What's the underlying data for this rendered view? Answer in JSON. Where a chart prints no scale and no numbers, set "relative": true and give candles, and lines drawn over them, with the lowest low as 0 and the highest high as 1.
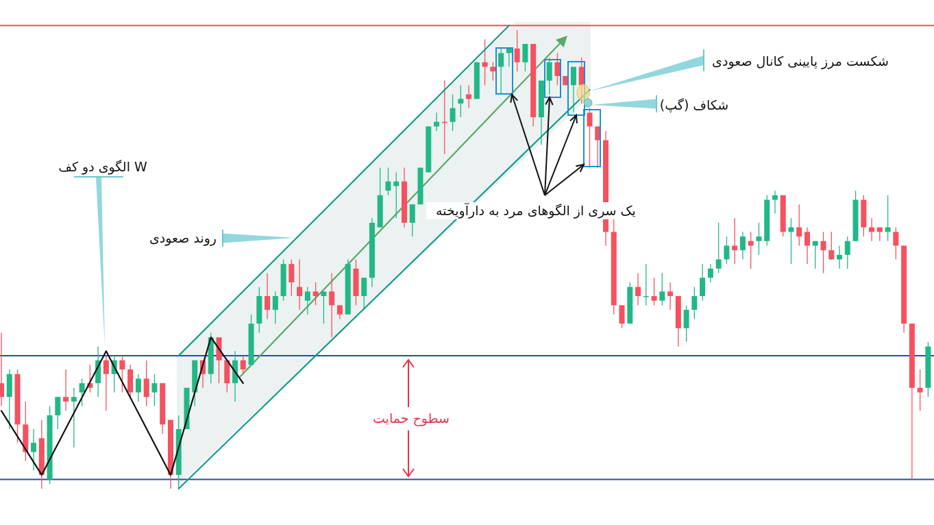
{
  "chart_data": {
    "type": "candlestick",
    "relative": true,
    "categories": [
      null,
      null,
      null,
      null,
      null,
      null,
      null,
      null,
      null,
      null,
      null,
      null,
      null,
      null,
      null,
      null,
      null,
      null,
      null,
      null,
      null,
      null,
      null,
      null,
      null,
      null,
      null,
      null,
      null,
      null,
      null,
      null,
      null,
      null,
      null,
      null,
      null,
      null,
      null,
      null,
      null,
      null,
      null,
      null,
      null,
      null,
      null,
      null,
      null,
      null,
      null,
      null,
      null,
      null,
      null,
      null,
      null,
      null,
      null,
      null,
      null,
      null,
      null,
      null,
      null,
      null,
      null,
      null,
      null,
      null,
      null,
      null,
      null,
      null,
      null,
      null,
      null,
      null,
      null,
      null,
      null,
      null,
      null,
      null,
      null,
      null,
      null,
      null,
      null,
      null,
      null,
      null,
      null,
      null,
      null,
      null,
      null,
      null,
      null,
      null,
      null,
      null,
      null,
      null,
      null,
      null,
      null,
      null,
      null,
      null,
      null,
      null,
      null,
      null,
      null,
      null
    ],
    "ohlc": [
      [
        0.23,
        0.34,
        0.18,
        0.2
      ],
      [
        0.2,
        0.26,
        0.13,
        0.25
      ],
      [
        0.25,
        0.26,
        0.1,
        0.14
      ],
      [
        0.14,
        0.19,
        0.06,
        0.08
      ],
      [
        0.08,
        0.13,
        0.04,
        0.1
      ],
      [
        0.11,
        0.15,
        0.0,
        0.03
      ],
      [
        0.02,
        0.18,
        0.01,
        0.16
      ],
      [
        0.16,
        0.2,
        0.13,
        0.2
      ],
      [
        0.2,
        0.26,
        0.17,
        0.19
      ],
      [
        0.19,
        0.22,
        0.09,
        0.2
      ],
      [
        0.21,
        0.24,
        0.18,
        0.23
      ],
      [
        0.23,
        0.27,
        0.21,
        0.22
      ],
      [
        0.23,
        0.31,
        0.2,
        0.28
      ],
      [
        0.28,
        0.29,
        0.17,
        0.25
      ],
      [
        0.25,
        0.29,
        0.21,
        0.28
      ],
      [
        0.28,
        0.29,
        0.21,
        0.26
      ],
      [
        0.26,
        0.27,
        0.2,
        0.21
      ],
      [
        0.21,
        0.25,
        0.19,
        0.24
      ],
      [
        0.24,
        0.28,
        0.18,
        0.2
      ],
      [
        0.21,
        0.25,
        0.18,
        0.23
      ],
      [
        0.23,
        0.23,
        0.12,
        0.14
      ],
      [
        0.15,
        0.15,
        0.0,
        0.03
      ],
      [
        0.03,
        0.16,
        0.0,
        0.13
      ],
      [
        0.13,
        0.22,
        0.13,
        0.22
      ],
      [
        0.21,
        0.28,
        0.18,
        0.28
      ],
      [
        0.28,
        0.28,
        0.22,
        0.25
      ],
      [
        0.25,
        0.34,
        0.23,
        0.33
      ],
      [
        0.33,
        0.33,
        0.23,
        0.28
      ],
      [
        0.28,
        0.28,
        0.21,
        0.23
      ],
      [
        0.23,
        0.3,
        0.19,
        0.28
      ],
      [
        0.28,
        0.29,
        0.25,
        0.26
      ],
      [
        0.27,
        0.38,
        0.27,
        0.36
      ],
      [
        0.36,
        0.44,
        0.34,
        0.42
      ],
      [
        0.42,
        0.47,
        0.37,
        0.39
      ],
      [
        0.39,
        0.43,
        0.36,
        0.42
      ],
      [
        0.42,
        0.5,
        0.41,
        0.49
      ],
      [
        0.49,
        0.5,
        0.42,
        0.45
      ],
      [
        0.44,
        0.5,
        0.39,
        0.42
      ],
      [
        0.41,
        0.44,
        0.38,
        0.43
      ],
      [
        0.43,
        0.45,
        0.4,
        0.42
      ],
      [
        0.42,
        0.43,
        0.36,
        0.43
      ],
      [
        0.43,
        0.47,
        0.33,
        0.4
      ],
      [
        0.4,
        0.4,
        0.37,
        0.38
      ],
      [
        0.38,
        0.5,
        0.38,
        0.49
      ],
      [
        0.48,
        0.5,
        0.4,
        0.42
      ],
      [
        0.42,
        0.46,
        0.39,
        0.46
      ],
      [
        0.46,
        0.59,
        0.44,
        0.58
      ],
      [
        0.57,
        0.7,
        0.57,
        0.64
      ],
      [
        0.65,
        0.7,
        0.64,
        0.67
      ],
      [
        0.66,
        0.69,
        0.59,
        0.67
      ],
      [
        0.67,
        0.7,
        0.57,
        0.58
      ],
      [
        0.58,
        0.62,
        0.55,
        0.62
      ],
      [
        0.62,
        0.7,
        0.62,
        0.7
      ],
      [
        0.69,
        0.79,
        0.69,
        0.79
      ],
      [
        0.79,
        0.82,
        0.78,
        0.8
      ],
      [
        0.8,
        0.89,
        0.73,
        0.8
      ],
      [
        0.8,
        0.86,
        0.78,
        0.83
      ],
      [
        0.84,
        0.88,
        0.81,
        0.85
      ],
      [
        0.86,
        0.88,
        0.83,
        0.85
      ],
      [
        0.85,
        0.93,
        0.85,
        0.93
      ],
      [
        0.93,
        0.98,
        0.88,
        0.92
      ],
      [
        0.92,
        0.93,
        0.89,
        0.91
      ],
      [
        0.92,
        0.96,
        0.86,
        0.95
      ],
      [
        0.95,
        0.96,
        0.92,
        0.96
      ],
      [
        0.96,
        1.0,
        0.91,
        0.93
      ],
      [
        0.93,
        0.97,
        0.91,
        0.97
      ],
      [
        0.97,
        0.97,
        0.79,
        0.81
      ],
      [
        0.81,
        0.89,
        0.75,
        0.89
      ],
      [
        0.89,
        0.94,
        0.86,
        0.93
      ],
      [
        0.93,
        0.95,
        0.88,
        0.9
      ],
      [
        0.9,
        0.9,
        0.88,
        0.88
      ],
      [
        0.88,
        0.92,
        0.82,
        0.92
      ],
      [
        0.92,
        0.94,
        0.84,
        0.88
      ],
      [
        0.82,
        0.83,
        0.7,
        0.79
      ],
      [
        0.79,
        0.79,
        0.7,
        0.76
      ],
      [
        0.76,
        0.78,
        0.53,
        0.56
      ],
      [
        0.56,
        0.59,
        0.38,
        0.4
      ],
      [
        0.4,
        0.4,
        0.35,
        0.36
      ],
      [
        0.36,
        0.45,
        0.36,
        0.44
      ],
      [
        0.44,
        0.47,
        0.4,
        0.42
      ],
      [
        0.42,
        0.49,
        0.4,
        0.42
      ],
      [
        0.42,
        0.46,
        0.4,
        0.41
      ],
      [
        0.41,
        0.47,
        0.4,
        0.43
      ],
      [
        0.43,
        0.45,
        0.39,
        0.42
      ],
      [
        0.42,
        0.42,
        0.31,
        0.35
      ],
      [
        0.35,
        0.4,
        0.32,
        0.39
      ],
      [
        0.39,
        0.44,
        0.37,
        0.42
      ],
      [
        0.42,
        0.49,
        0.41,
        0.46
      ],
      [
        0.46,
        0.49,
        0.45,
        0.48
      ],
      [
        0.48,
        0.58,
        0.47,
        0.5
      ],
      [
        0.5,
        0.55,
        0.49,
        0.53
      ],
      [
        0.53,
        0.59,
        0.49,
        0.52
      ],
      [
        0.52,
        0.56,
        0.5,
        0.55
      ],
      [
        0.54,
        0.56,
        0.48,
        0.53
      ],
      [
        0.54,
        0.58,
        0.51,
        0.55
      ],
      [
        0.54,
        0.64,
        0.53,
        0.63
      ],
      [
        0.63,
        0.65,
        0.6,
        0.64
      ],
      [
        0.64,
        0.64,
        0.55,
        0.56
      ],
      [
        0.56,
        0.59,
        0.49,
        0.57
      ],
      [
        0.57,
        0.62,
        0.53,
        0.55
      ],
      [
        0.56,
        0.57,
        0.49,
        0.53
      ],
      [
        0.53,
        0.54,
        0.48,
        0.54
      ],
      [
        0.54,
        0.56,
        0.47,
        0.52
      ],
      [
        0.52,
        0.56,
        0.5,
        0.5
      ],
      [
        0.5,
        0.53,
        0.48,
        0.51
      ],
      [
        0.51,
        0.55,
        0.48,
        0.54
      ],
      [
        0.54,
        0.65,
        0.54,
        0.63
      ],
      [
        0.63,
        0.64,
        0.55,
        0.57
      ],
      [
        0.57,
        0.59,
        0.54,
        0.56
      ],
      [
        0.57,
        0.57,
        0.54,
        0.56
      ],
      [
        0.56,
        0.64,
        0.54,
        0.57
      ],
      [
        0.56,
        0.57,
        0.5,
        0.53
      ],
      [
        0.53,
        0.53,
        0.34,
        0.36
      ],
      [
        0.36,
        0.36,
        0.02,
        0.22
      ],
      [
        0.22,
        0.26,
        0.17,
        0.21
      ],
      [
        0.22,
        0.32,
        0.2,
        0.31
      ]
    ],
    "colors": [
      "#f5515f",
      "#22b886",
      "#f5515f",
      "#f5515f",
      "#22b886",
      "#f5515f",
      "#22b886",
      "#22b886",
      "#f5515f",
      "#22b886",
      "#22b886",
      "#f5515f",
      "#22b886",
      "#f5515f",
      "#22b886",
      "#f5515f",
      "#f5515f",
      "#22b886",
      "#f5515f",
      "#22b886",
      "#f5515f",
      "#f5515f",
      "#22b886",
      "#22b886",
      "#22b886",
      "#f5515f",
      "#22b886",
      "#f5515f",
      "#f5515f",
      "#22b886",
      "#f5515f",
      "#22b886",
      "#22b886",
      "#f5515f",
      "#22b886",
      "#22b886",
      "#f5515f",
      "#f5515f",
      "#22b886",
      "#f5515f",
      "#22b886",
      "#f5515f",
      "#f5515f",
      "#22b886",
      "#f5515f",
      "#22b886",
      "#22b886",
      "#22b886",
      "#22b886",
      "#22b886",
      "#f5515f",
      "#22b886",
      "#22b886",
      "#22b886",
      "#22b886",
      "#f5515f",
      "#22b886",
      "#22b886",
      "#f5515f",
      "#22b886",
      "#f5515f",
      "#f5515f",
      "#22b886",
      "#22b886",
      "#f5515f",
      "#22b886",
      "#f5515f",
      "#22b886",
      "#22b886",
      "#f5515f",
      "#f5515f",
      "#22b886",
      "#f5515f",
      "#f5515f",
      "#f5515f",
      "#f5515f",
      "#f5515f",
      "#f5515f",
      "#22b886",
      "#f5515f",
      "#22b886",
      "#f5515f",
      "#22b886",
      "#f5515f",
      "#f5515f",
      "#22b886",
      "#22b886",
      "#22b886",
      "#22b886",
      "#22b886",
      "#22b886",
      "#f5515f",
      "#22b886",
      "#f5515f",
      "#22b886",
      "#22b886",
      "#22b886",
      "#f5515f",
      "#22b886",
      "#f5515f",
      "#f5515f",
      "#22b886",
      "#f5515f",
      "#f5515f",
      "#22b886",
      "#22b886",
      "#22b886",
      "#f5515f",
      "#f5515f",
      "#f5515f",
      "#22b886",
      "#f5515f",
      "#f5515f",
      "#f5515f",
      "#f5515f",
      "#22b886"
    ],
    "series": [
      {
        "type": "line",
        "color": "#111111",
        "values": [
          0.17,
          null,
          null,
          null,
          null,
          0.03,
          null,
          null,
          null,
          null,
          null,
          null,
          null,
          0.3,
          null,
          null,
          null,
          null,
          null,
          null,
          null,
          0.03,
          null,
          null,
          null,
          null,
          0.33,
          null,
          null,
          null,
          0.23,
          null,
          null,
          null,
          null,
          null,
          null,
          null,
          null,
          null,
          null,
          null,
          null,
          null,
          null,
          null,
          null,
          null,
          null,
          null,
          null,
          null,
          null,
          null,
          null,
          null,
          null,
          null,
          null,
          null,
          null,
          null,
          null,
          null,
          null,
          null,
          null,
          null,
          null,
          null,
          null,
          null,
          null,
          null,
          null,
          null,
          null,
          null,
          null,
          null,
          null,
          null,
          null,
          null,
          null,
          null,
          null,
          null,
          null,
          null,
          null,
          null,
          null,
          null,
          null,
          null,
          null,
          null,
          null,
          null,
          null,
          null,
          null,
          null,
          null,
          null,
          null,
          null,
          null,
          null,
          null,
          null,
          null,
          null,
          null,
          null
        ]
      },
      {
        "type": "line",
        "color": "#129c8c",
        "values": [
          null,
          null,
          null,
          null,
          null,
          null,
          null,
          null,
          null,
          null,
          null,
          null,
          null,
          null,
          null,
          null,
          null,
          null,
          null,
          null,
          null,
          null,
          0.29,
          null,
          null,
          null,
          null,
          null,
          null,
          null,
          null,
          null,
          null,
          null,
          null,
          null,
          null,
          null,
          null,
          null,
          null,
          null,
          null,
          null,
          null,
          null,
          null,
          null,
          null,
          null,
          null,
          null,
          null,
          null,
          null,
          null,
          null,
          null,
          null,
          null,
          null,
          null,
          null,
          1.01,
          null,
          null,
          null,
          null,
          null,
          null,
          null,
          null,
          null,
          null,
          null,
          null,
          null,
          null,
          null,
          null,
          null,
          null,
          null,
          null,
          null,
          null,
          null,
          null,
          null,
          null,
          null,
          null,
          null,
          null,
          null,
          null,
          null,
          null,
          null,
          null,
          null,
          null,
          null,
          null,
          null,
          null,
          null,
          null,
          null,
          null,
          null,
          null,
          null,
          null,
          null,
          null
        ]
      },
      {
        "type": "line",
        "color": "#129c8c",
        "values": [
          null,
          null,
          null,
          null,
          null,
          null,
          null,
          null,
          null,
          null,
          null,
          null,
          null,
          null,
          null,
          null,
          null,
          null,
          null,
          null,
          null,
          null,
          0.0,
          null,
          null,
          null,
          null,
          null,
          null,
          null,
          null,
          null,
          null,
          null,
          null,
          null,
          null,
          null,
          null,
          null,
          null,
          null,
          null,
          null,
          null,
          null,
          null,
          null,
          null,
          null,
          null,
          null,
          null,
          null,
          null,
          null,
          null,
          null,
          null,
          null,
          null,
          null,
          null,
          null,
          null,
          null,
          null,
          null,
          null,
          null,
          null,
          null,
          null,
          0.87,
          null,
          null,
          null,
          null,
          null,
          null,
          null,
          null,
          null,
          null,
          null,
          null,
          null,
          null,
          null,
          null,
          null,
          null,
          null,
          null,
          null,
          null,
          null,
          null,
          null,
          null,
          null,
          null,
          null,
          null,
          null,
          null,
          null,
          null,
          null,
          null,
          null,
          null,
          null,
          null,
          null,
          null
        ]
      }
    ],
    "ref_lines": [
      {
        "axis": "y",
        "value": 1.01,
        "color": "#f0505a"
      },
      {
        "axis": "y",
        "value": 0.29,
        "color": "#2a4d9b"
      },
      {
        "axis": "y",
        "value": 0.02,
        "color": "#2a4d9b"
      }
    ],
    "annotations": [
      "W الگوی دو کف",
      "روند صعودی",
      "یک سری از الگوهای مرد به دارآویخته",
      "شکست مرز پایینی کانال صعودی",
      "شکاف (گپ)",
      "سطوح حمایت"
    ]
  }
}
